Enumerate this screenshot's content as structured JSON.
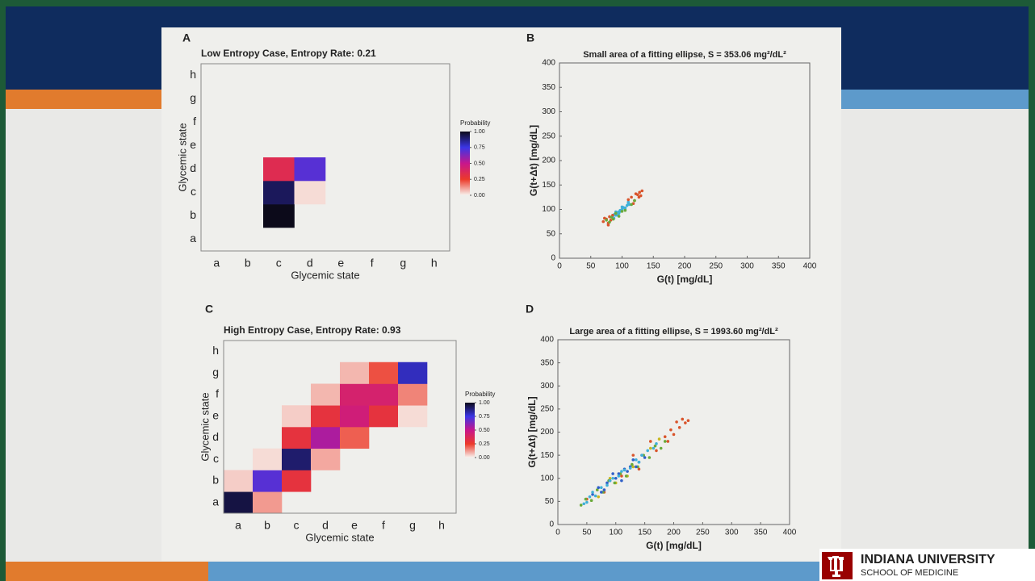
{
  "chart_data": [
    {
      "type": "heatmap",
      "panel": "A",
      "title": "Low Entropy Case, Entropy Rate: 0.21",
      "x_label": "Glycemic state",
      "y_label": "Glycemic state",
      "x_categories": [
        "a",
        "b",
        "c",
        "d",
        "e",
        "f",
        "g",
        "h"
      ],
      "y_categories": [
        "a",
        "b",
        "c",
        "d",
        "e",
        "f",
        "g",
        "h"
      ],
      "values": [
        [
          null,
          null,
          null,
          null,
          null,
          null,
          null,
          null
        ],
        [
          null,
          null,
          1.0,
          null,
          null,
          null,
          null,
          null
        ],
        [
          null,
          null,
          0.92,
          0.03,
          null,
          null,
          null,
          null
        ],
        [
          null,
          null,
          0.35,
          0.7,
          null,
          null,
          null,
          null
        ],
        [
          null,
          null,
          null,
          null,
          null,
          null,
          null,
          null
        ],
        [
          null,
          null,
          null,
          null,
          null,
          null,
          null,
          null
        ],
        [
          null,
          null,
          null,
          null,
          null,
          null,
          null,
          null
        ],
        [
          null,
          null,
          null,
          null,
          null,
          null,
          null,
          null
        ]
      ],
      "colormap": [
        "#f7f2ee",
        "#ec3a2a",
        "#c8168c",
        "#3b36e6",
        "#0c0a1a"
      ],
      "colorbar_title": "Probability",
      "colorbar_lim": [
        0,
        1
      ],
      "colorbar_ticks": [
        {
          "value": 0,
          "label": "0.00"
        },
        {
          "value": 0.25,
          "label": "0.25"
        },
        {
          "value": 0.5,
          "label": "0.50"
        },
        {
          "value": 0.75,
          "label": "0.75"
        },
        {
          "value": 1,
          "label": "1.00"
        }
      ]
    },
    {
      "type": "scatter",
      "panel": "B",
      "title": "Small area of a fitting ellipse, S = 353.06 mg²/dL²",
      "x_label": "G(t) [mg/dL]",
      "y_label": "G(t+Δt) [mg/dL]",
      "xlim": [
        0,
        400
      ],
      "ylim": [
        0,
        400
      ],
      "xticks": [
        0,
        50,
        100,
        150,
        200,
        250,
        300,
        350,
        400
      ],
      "yticks": [
        0,
        50,
        100,
        150,
        200,
        250,
        300,
        350,
        400
      ],
      "series": [
        {
          "color": "#3fb0d8",
          "x": [
            85,
            88,
            90,
            92,
            95,
            97,
            100,
            102,
            105,
            108,
            110,
            112,
            90,
            95,
            100,
            105,
            98,
            93,
            87,
            110
          ],
          "values": [
            85,
            90,
            88,
            94,
            95,
            98,
            100,
            104,
            103,
            108,
            112,
            110,
            95,
            92,
            105,
            100,
            96,
            88,
            82,
            115
          ]
        },
        {
          "color": "#d9542b",
          "x": [
            70,
            75,
            78,
            80,
            82,
            85,
            110,
            115,
            120,
            125,
            128,
            130,
            132,
            118,
            122,
            127,
            78,
            72
          ],
          "values": [
            75,
            80,
            72,
            85,
            78,
            88,
            120,
            125,
            118,
            130,
            135,
            128,
            138,
            112,
            132,
            125,
            68,
            82
          ]
        },
        {
          "color": "#6aaa3a",
          "x": [
            75,
            80,
            83,
            86,
            90,
            95,
            100,
            105,
            115,
            120
          ],
          "values": [
            78,
            74,
            84,
            80,
            92,
            86,
            96,
            98,
            110,
            118
          ]
        }
      ]
    },
    {
      "type": "heatmap",
      "panel": "C",
      "title": "High Entropy Case, Entropy Rate: 0.93",
      "x_label": "Glycemic state",
      "y_label": "Glycemic state",
      "x_categories": [
        "a",
        "b",
        "c",
        "d",
        "e",
        "f",
        "g",
        "h"
      ],
      "y_categories": [
        "a",
        "b",
        "c",
        "d",
        "e",
        "f",
        "g",
        "h"
      ],
      "values": [
        [
          0.95,
          0.12,
          null,
          null,
          null,
          null,
          null,
          null
        ],
        [
          0.05,
          0.7,
          0.3,
          null,
          null,
          null,
          null,
          null
        ],
        [
          null,
          0.03,
          0.9,
          0.1,
          null,
          null,
          null,
          null
        ],
        [
          null,
          null,
          0.3,
          0.55,
          0.2,
          null,
          null,
          null
        ],
        [
          null,
          null,
          0.05,
          0.3,
          0.45,
          0.3,
          0.03,
          null
        ],
        [
          null,
          null,
          null,
          0.08,
          0.42,
          0.42,
          0.15,
          null
        ],
        [
          null,
          null,
          null,
          null,
          0.08,
          0.22,
          0.8,
          null
        ],
        [
          null,
          null,
          null,
          null,
          null,
          null,
          null,
          null
        ]
      ],
      "colormap": [
        "#f7f2ee",
        "#ec3a2a",
        "#c8168c",
        "#3b36e6",
        "#0c0a1a"
      ],
      "colorbar_title": "Probability",
      "colorbar_lim": [
        0,
        1
      ],
      "colorbar_ticks": [
        {
          "value": 0,
          "label": "0.00"
        },
        {
          "value": 0.25,
          "label": "0.25"
        },
        {
          "value": 0.5,
          "label": "0.50"
        },
        {
          "value": 0.75,
          "label": "0.75"
        },
        {
          "value": 1,
          "label": "1.00"
        }
      ]
    },
    {
      "type": "scatter",
      "panel": "D",
      "title": "Large area of a fitting ellipse, S = 1993.60 mg²/dL²",
      "x_label": "G(t) [mg/dL]",
      "y_label": "G(t+Δt) [mg/dL]",
      "xlim": [
        0,
        400
      ],
      "ylim": [
        0,
        400
      ],
      "xticks": [
        0,
        50,
        100,
        150,
        200,
        250,
        300,
        350,
        400
      ],
      "yticks": [
        0,
        50,
        100,
        150,
        200,
        250,
        300,
        350,
        400
      ],
      "series": [
        {
          "color": "#d9542b",
          "x": [
            50,
            80,
            110,
            140,
            170,
            190,
            200,
            210,
            220,
            225,
            215,
            205,
            195,
            185,
            160,
            130
          ],
          "values": [
            55,
            70,
            105,
            120,
            160,
            180,
            195,
            210,
            220,
            225,
            228,
            222,
            205,
            190,
            180,
            150
          ]
        },
        {
          "color": "#c8b820",
          "x": [
            70,
            100,
            130,
            160,
            175,
            120,
            90
          ],
          "values": [
            60,
            90,
            125,
            165,
            185,
            105,
            100
          ]
        },
        {
          "color": "#6aaa3a",
          "x": [
            40,
            48,
            58,
            68,
            78,
            88,
            98,
            108,
            118,
            128,
            138,
            148,
            158,
            168,
            178,
            185
          ],
          "values": [
            42,
            55,
            52,
            75,
            70,
            95,
            90,
            110,
            105,
            130,
            125,
            150,
            145,
            170,
            165,
            180
          ]
        },
        {
          "color": "#3060c8",
          "x": [
            60,
            70,
            80,
            90,
            100,
            105,
            110,
            115,
            120,
            125,
            130,
            140,
            85,
            95,
            75,
            135,
            145,
            150
          ],
          "values": [
            65,
            80,
            75,
            95,
            100,
            110,
            95,
            120,
            115,
            125,
            140,
            135,
            90,
            110,
            70,
            125,
            150,
            145
          ]
        },
        {
          "color": "#3fb0d8",
          "x": [
            45,
            50,
            55,
            65,
            75,
            85,
            95,
            105,
            115,
            125,
            135,
            145,
            155,
            165,
            170,
            60,
            90,
            110,
            140
          ],
          "values": [
            45,
            48,
            60,
            62,
            80,
            85,
            100,
            105,
            118,
            122,
            140,
            150,
            160,
            165,
            175,
            70,
            95,
            115,
            135
          ]
        }
      ]
    }
  ],
  "logo": {
    "name": "INDIANA UNIVERSITY",
    "subtitle": "SCHOOL OF MEDICINE"
  }
}
